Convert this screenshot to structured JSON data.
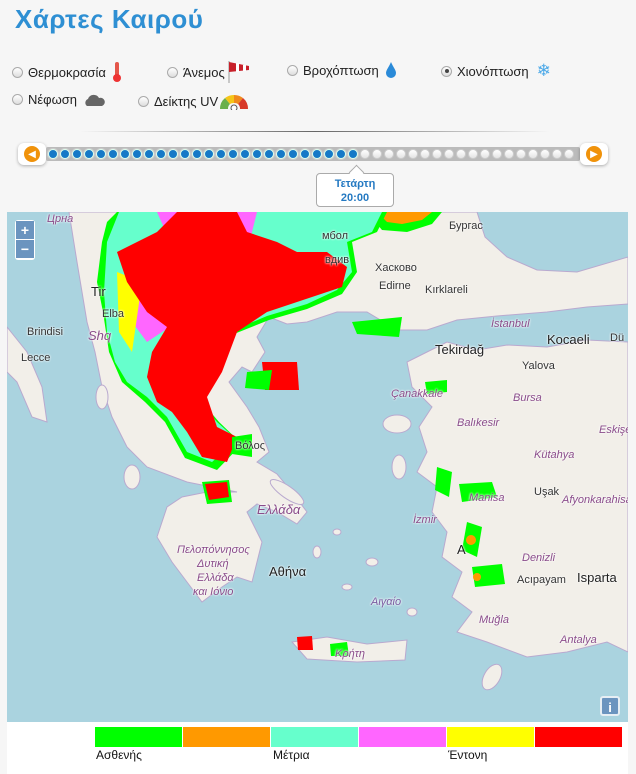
{
  "title": "Χάρτες Καιρού",
  "options": [
    {
      "label": "Θερμοκρασία",
      "icon": "thermometer-icon",
      "selected": false
    },
    {
      "label": "Άνεμος",
      "icon": "windsock-icon",
      "selected": false
    },
    {
      "label": "Βροχόπτωση",
      "icon": "raindrop-icon",
      "selected": false
    },
    {
      "label": "Χιονόπτωση",
      "icon": "snowflake-icon",
      "selected": true
    },
    {
      "label": "Νέφωση",
      "icon": "cloud-icon",
      "selected": false
    },
    {
      "label": "Δείκτης UV",
      "icon": "uv-gauge-icon",
      "selected": false
    }
  ],
  "timeline": {
    "total_steps": 44,
    "selected_step": 26,
    "tooltip_day": "Τετάρτη",
    "tooltip_time": "20:00",
    "accent": "#f0920a",
    "dot_color": "#1579c7"
  },
  "map": {
    "zoom_in": "+",
    "zoom_out": "−",
    "info": "i",
    "labels": {
      "haskovo": "Хасково",
      "burgas": "Бургас",
      "plovdiv": "вдив",
      "yambol": "мбол",
      "edirne": "Edirne",
      "kirklareli": "Kırklareli",
      "istanbul": "İstanbul",
      "kocaeli": "Kocaeli",
      "duzce": "Dü",
      "tekirdag": "Tekirdağ",
      "yalova": "Yalova",
      "canakkale": "Çanakkale",
      "bursa": "Bursa",
      "balikesir": "Balıkesir",
      "eskisehir": "Eskişe",
      "kutahya": "Kütahya",
      "manisa": "Manisa",
      "usak": "Uşak",
      "afyon": "Afyonkarahisa",
      "izmir": "İzmir",
      "aydin": "A",
      "denizli": "Denizli",
      "acipayam": "Acıpayam",
      "isparta": "Isparta",
      "mugla": "Muğla",
      "antalya": "Antalya",
      "athens": "Αθήνα",
      "greece": "Ελλάδα",
      "aegean": "Αιγαίο",
      "volos": "Βόλος",
      "peloponnese": "Πελοπόννησος",
      "west_greece_1": "Δυτική",
      "west_greece_2": "Ελλάδα",
      "west_greece_3": "και Ιόνιο",
      "crete": "Κρήτη",
      "brindisi": "Brindisi",
      "lecce": "Lecce",
      "tirana": "Tir",
      "elbasan": "Elba",
      "shqiperia": "Shq",
      "crna": "Црна"
    }
  },
  "legend": {
    "colors": [
      "#00ff00",
      "#ff9900",
      "#66ffcc",
      "#ff66ff",
      "#ffff00",
      "#ff0000"
    ],
    "labels": {
      "weak": "Ασθενής",
      "moderate": "Μέτρια",
      "heavy": "Έντονη"
    }
  }
}
